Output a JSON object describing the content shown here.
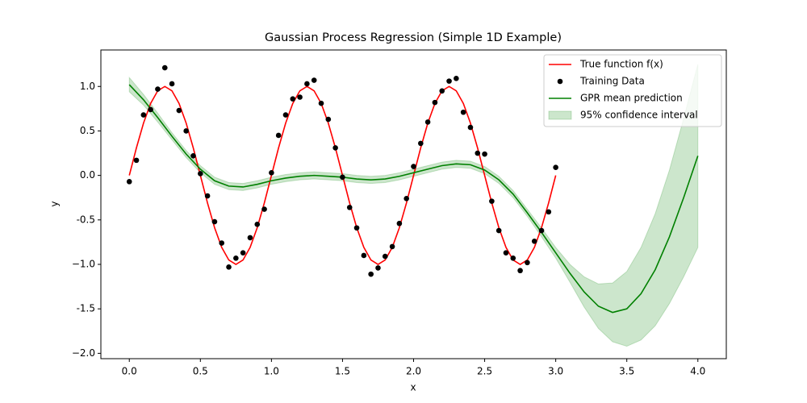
{
  "chart_data": {
    "type": "line",
    "title": "Gaussian Process Regression (Simple 1D Example)",
    "x_label": "x",
    "y_label": "y",
    "xlim": [
      -0.2,
      4.2
    ],
    "ylim": [
      -2.06,
      1.41
    ],
    "xticks": [
      {
        "value": 0,
        "label": "0.0"
      },
      0.5,
      {
        "value": 1,
        "label": "1.0"
      },
      1.5,
      {
        "value": 2,
        "label": "2.0"
      },
      2.5,
      {
        "value": 3,
        "label": "3.0"
      },
      3.5,
      {
        "value": 4,
        "label": "4.0"
      }
    ],
    "yticks": [
      {
        "value": -2,
        "label": "−2.0"
      },
      -1.5,
      {
        "value": -1,
        "label": "−1.0"
      },
      -0.5,
      {
        "value": 0,
        "label": "0.0"
      },
      0.5,
      {
        "value": 1,
        "label": "1.0"
      }
    ],
    "legend": "upper right",
    "series": [
      {
        "name": "True function f(x)",
        "type": "line",
        "color": "#ff0000",
        "x": [
          0,
          0.05,
          0.1,
          0.15,
          0.2,
          0.25,
          0.3,
          0.35,
          0.4,
          0.45,
          0.5,
          0.55,
          0.6,
          0.65,
          0.7,
          0.75,
          0.8,
          0.85,
          0.9,
          0.95,
          1,
          1.05,
          1.1,
          1.15,
          1.2,
          1.25,
          1.3,
          1.35,
          1.4,
          1.45,
          1.5,
          1.55,
          1.6,
          1.65,
          1.7,
          1.75,
          1.8,
          1.85,
          1.9,
          1.95,
          2,
          2.05,
          2.1,
          2.15,
          2.2,
          2.25,
          2.3,
          2.35,
          2.4,
          2.45,
          2.5,
          2.55,
          2.6,
          2.65,
          2.7,
          2.75,
          2.8,
          2.85,
          2.9,
          2.95,
          3
        ],
        "values": [
          0,
          0.309,
          0.588,
          0.809,
          0.951,
          1,
          0.951,
          0.809,
          0.588,
          0.309,
          0,
          -0.309,
          -0.588,
          -0.809,
          -0.951,
          -1,
          -0.951,
          -0.809,
          -0.588,
          -0.309,
          0,
          0.309,
          0.588,
          0.809,
          0.951,
          1,
          0.951,
          0.809,
          0.588,
          0.309,
          0,
          -0.309,
          -0.588,
          -0.809,
          -0.951,
          -1,
          -0.951,
          -0.809,
          -0.588,
          -0.309,
          0,
          0.309,
          0.588,
          0.809,
          0.951,
          1,
          0.951,
          0.809,
          0.588,
          0.309,
          0,
          -0.309,
          -0.588,
          -0.809,
          -0.951,
          -1,
          -0.951,
          -0.809,
          -0.588,
          -0.309,
          0
        ]
      },
      {
        "name": "Training Data",
        "type": "scatter",
        "color": "#000000",
        "x": [
          0,
          0.05,
          0.1,
          0.15,
          0.2,
          0.25,
          0.3,
          0.35,
          0.4,
          0.45,
          0.5,
          0.55,
          0.6,
          0.65,
          0.7,
          0.75,
          0.8,
          0.85,
          0.9,
          0.95,
          1,
          1.05,
          1.1,
          1.15,
          1.2,
          1.25,
          1.3,
          1.35,
          1.4,
          1.45,
          1.5,
          1.55,
          1.6,
          1.65,
          1.7,
          1.75,
          1.8,
          1.85,
          1.9,
          1.95,
          2,
          2.05,
          2.1,
          2.15,
          2.2,
          2.25,
          2.3,
          2.35,
          2.4,
          2.45,
          2.5,
          2.55,
          2.6,
          2.65,
          2.7,
          2.75,
          2.8,
          2.85,
          2.9,
          2.95,
          3
        ],
        "values": [
          -0.07,
          0.17,
          0.68,
          0.74,
          0.97,
          1.21,
          1.03,
          0.73,
          0.5,
          0.22,
          0.02,
          -0.23,
          -0.52,
          -0.76,
          -1.03,
          -0.93,
          -0.87,
          -0.7,
          -0.55,
          -0.38,
          0.03,
          0.45,
          0.68,
          0.86,
          0.88,
          1.03,
          1.07,
          0.81,
          0.63,
          0.31,
          -0.02,
          -0.36,
          -0.59,
          -0.9,
          -1.11,
          -1.04,
          -0.91,
          -0.8,
          -0.54,
          -0.26,
          0.1,
          0.36,
          0.6,
          0.82,
          0.95,
          1.06,
          1.09,
          0.71,
          0.54,
          0.25,
          0.24,
          -0.29,
          -0.62,
          -0.87,
          -0.93,
          -1.07,
          -0.98,
          -0.74,
          -0.62,
          -0.41,
          0.09
        ]
      },
      {
        "name": "GPR mean prediction",
        "type": "line",
        "color": "#008000",
        "x": [
          0,
          0.1,
          0.2,
          0.3,
          0.4,
          0.5,
          0.6,
          0.7,
          0.8,
          0.9,
          1,
          1.1,
          1.2,
          1.3,
          1.4,
          1.5,
          1.6,
          1.7,
          1.8,
          1.9,
          2,
          2.1,
          2.2,
          2.3,
          2.4,
          2.5,
          2.6,
          2.7,
          2.8,
          2.9,
          3,
          3.1,
          3.2,
          3.3,
          3.4,
          3.5,
          3.6,
          3.7,
          3.8,
          3.9,
          4
        ],
        "values": [
          1.02,
          0.85,
          0.65,
          0.44,
          0.24,
          0.07,
          -0.06,
          -0.12,
          -0.13,
          -0.1,
          -0.06,
          -0.03,
          -0.01,
          0,
          -0.01,
          -0.02,
          -0.04,
          -0.05,
          -0.04,
          -0.01,
          0.03,
          0.07,
          0.11,
          0.13,
          0.12,
          0.06,
          -0.05,
          -0.21,
          -0.42,
          -0.64,
          -0.87,
          -1.1,
          -1.31,
          -1.47,
          -1.54,
          -1.5,
          -1.33,
          -1.06,
          -0.69,
          -0.25,
          0.22
        ]
      },
      {
        "name": "95% confidence interval",
        "type": "band",
        "color": "#008000",
        "alpha": 0.2,
        "x": [
          0,
          0.1,
          0.2,
          0.3,
          0.4,
          0.5,
          0.6,
          0.7,
          0.8,
          0.9,
          1,
          1.1,
          1.2,
          1.3,
          1.4,
          1.5,
          1.6,
          1.7,
          1.8,
          1.9,
          2,
          2.1,
          2.2,
          2.3,
          2.4,
          2.5,
          2.6,
          2.7,
          2.8,
          2.9,
          3,
          3.1,
          3.2,
          3.3,
          3.4,
          3.5,
          3.6,
          3.7,
          3.8,
          3.9,
          4
        ],
        "lower": [
          0.94,
          0.79,
          0.6,
          0.4,
          0.2,
          0.03,
          -0.1,
          -0.16,
          -0.17,
          -0.14,
          -0.1,
          -0.07,
          -0.05,
          -0.04,
          -0.05,
          -0.06,
          -0.08,
          -0.09,
          -0.08,
          -0.05,
          -0.01,
          0.03,
          0.07,
          0.09,
          0.08,
          0.02,
          -0.09,
          -0.25,
          -0.46,
          -0.69,
          -0.93,
          -1.2,
          -1.48,
          -1.72,
          -1.87,
          -1.92,
          -1.85,
          -1.69,
          -1.44,
          -1.14,
          -0.81
        ],
        "upper": [
          1.1,
          0.91,
          0.7,
          0.48,
          0.28,
          0.11,
          -0.02,
          -0.08,
          -0.09,
          -0.06,
          -0.02,
          0.01,
          0.03,
          0.04,
          0.03,
          0.02,
          0,
          -0.01,
          0,
          0.03,
          0.07,
          0.11,
          0.15,
          0.17,
          0.16,
          0.1,
          -0.01,
          -0.17,
          -0.38,
          -0.59,
          -0.81,
          -1,
          -1.14,
          -1.22,
          -1.21,
          -1.08,
          -0.81,
          -0.43,
          0.06,
          0.64,
          1.25
        ]
      }
    ]
  }
}
